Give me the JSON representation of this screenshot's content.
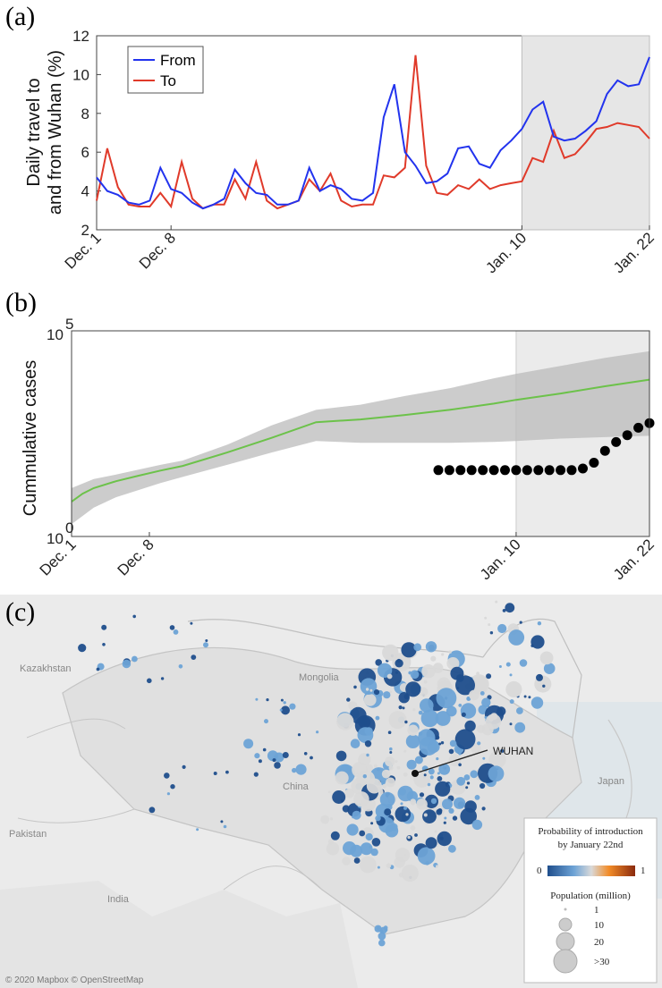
{
  "panels": {
    "a": "(a)",
    "b": "(b)",
    "c": "(c)"
  },
  "chart_data": [
    {
      "type": "line",
      "ylabel": [
        "Daily travel to",
        "and from Wuhan (%)"
      ],
      "ylim": [
        2,
        12
      ],
      "yticks": [
        2,
        4,
        6,
        8,
        10,
        12
      ],
      "xticks": [
        {
          "day": 0,
          "label": "Dec. 1"
        },
        {
          "day": 7,
          "label": "Dec. 8"
        },
        {
          "day": 40,
          "label": "Jan. 10"
        },
        {
          "day": 52,
          "label": "Jan. 22"
        }
      ],
      "shaded_range": [
        40,
        52
      ],
      "legend_position": "top-left",
      "series": [
        {
          "name": "From",
          "color": "#2233ee",
          "values": [
            4.7,
            4.0,
            3.8,
            3.4,
            3.3,
            3.5,
            5.2,
            4.1,
            3.9,
            3.4,
            3.1,
            3.3,
            3.6,
            5.1,
            4.4,
            3.9,
            3.8,
            3.3,
            3.3,
            3.5,
            5.2,
            4.0,
            4.3,
            4.1,
            3.6,
            3.5,
            3.9,
            7.8,
            9.5,
            6.0,
            5.3,
            4.4,
            4.5,
            4.9,
            6.2,
            6.3,
            5.4,
            5.2,
            6.1,
            6.6,
            7.2,
            8.2,
            8.6,
            6.8,
            6.6,
            6.7,
            7.1,
            7.6,
            9.0,
            9.7,
            9.4,
            9.5,
            10.9
          ]
        },
        {
          "name": "To",
          "color": "#e03a2a",
          "values": [
            3.5,
            6.2,
            4.2,
            3.3,
            3.2,
            3.2,
            3.9,
            3.2,
            5.5,
            3.6,
            3.1,
            3.3,
            3.3,
            4.6,
            3.6,
            5.5,
            3.5,
            3.1,
            3.3,
            3.5,
            4.6,
            4.0,
            4.9,
            3.5,
            3.2,
            3.3,
            3.3,
            4.8,
            4.7,
            5.2,
            11.0,
            5.3,
            3.9,
            3.8,
            4.3,
            4.1,
            4.6,
            4.1,
            4.3,
            4.4,
            4.5,
            5.7,
            5.5,
            7.1,
            5.7,
            5.9,
            6.5,
            7.2,
            7.3,
            7.5,
            7.4,
            7.3,
            6.7
          ]
        }
      ]
    },
    {
      "type": "line",
      "ylabel": "Cummulative cases",
      "yscale": "log",
      "ylim": [
        1,
        100000
      ],
      "ytick_labels": [
        {
          "value": 100000,
          "base": "10",
          "exp": "5"
        },
        {
          "value": 1,
          "base": "10",
          "exp": "0"
        }
      ],
      "xticks": [
        {
          "day": 0,
          "label": "Dec. 1"
        },
        {
          "day": 7,
          "label": "Dec. 8"
        },
        {
          "day": 40,
          "label": "Jan. 10"
        },
        {
          "day": 52,
          "label": "Jan. 22"
        }
      ],
      "shaded_range": [
        40,
        52
      ],
      "median": {
        "color": "#6cc24a",
        "x": [
          0,
          1,
          2,
          4,
          6,
          8,
          10,
          14,
          18,
          22,
          26,
          30,
          34,
          38,
          40,
          44,
          48,
          52
        ],
        "y": [
          7,
          11,
          15,
          22,
          30,
          40,
          52,
          110,
          250,
          600,
          700,
          900,
          1200,
          1700,
          2100,
          3000,
          4500,
          6500
        ]
      },
      "band": {
        "color": "#bbbbbb",
        "x": [
          0,
          2,
          4,
          8,
          10,
          14,
          18,
          22,
          26,
          30,
          34,
          38,
          40,
          44,
          48,
          52
        ],
        "lower": [
          2,
          5,
          9,
          20,
          28,
          55,
          110,
          210,
          190,
          190,
          190,
          200,
          210,
          240,
          260,
          280
        ],
        "upper": [
          15,
          25,
          32,
          55,
          70,
          170,
          500,
          1200,
          1600,
          2600,
          4000,
          7000,
          9000,
          14000,
          22000,
          32000
        ]
      },
      "observed": {
        "color": "#000000",
        "x": [
          33,
          34,
          35,
          36,
          37,
          38,
          39,
          40,
          41,
          42,
          43,
          44,
          45,
          46,
          47,
          48,
          49,
          50,
          51,
          52
        ],
        "y": [
          41,
          41,
          41,
          41,
          41,
          41,
          41,
          41,
          41,
          41,
          41,
          41,
          41,
          45,
          62,
          121,
          198,
          291,
          440,
          571
        ]
      }
    }
  ],
  "map": {
    "labels": {
      "kazakhstan": "Kazakhstan",
      "mongolia": "Mongolia",
      "china": "China",
      "japan": "Japan",
      "pakistan": "Pakistan",
      "india": "India",
      "wuhan": "WUHAN"
    },
    "attribution": "© 2020 Mapbox © OpenStreetMap",
    "legend": {
      "title_line1": "Probability of introduction",
      "title_line2": "by January 22nd",
      "scale_min": "0",
      "scale_max": "1",
      "colors": [
        "#1f4e8c",
        "#6da3d6",
        "#d9d9d9",
        "#f28c28",
        "#8b2a0e"
      ],
      "pop_title": "Population (million)",
      "pop_labels": [
        "1",
        "10",
        "20",
        ">30"
      ]
    }
  }
}
